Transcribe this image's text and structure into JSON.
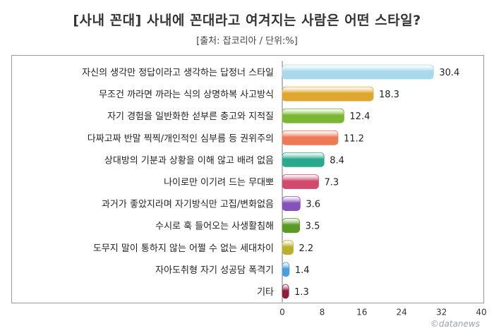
{
  "header": {
    "title": "[사내 꼰대] 사내에 꼰대라고 여겨지는 사람은 어떤 스타일?",
    "subtitle": "[출처: 잡코리아 / 단위:%]"
  },
  "watermark": "©datanews",
  "chart_data": {
    "type": "bar",
    "orientation": "horizontal",
    "title": "[사내 꼰대] 사내에 꼰대라고 여겨지는 사람은 어떤 스타일?",
    "subtitle": "[출처: 잡코리아 / 단위:%]",
    "categories": [
      "자신의 생각만 정답이라고 생각하는 답정너 스타일",
      "무조건 까라면 까라는 식의 상명하복 사고방식",
      "자기 경험을 일반화한 섣부른 충고와 지적질",
      "다짜고짜 반말 찍찍/개인적인 심부름 등 권위주의",
      "상대방의 기분과 상황을 이해 않고 배려 없음",
      "나이로만 이기려 드는 무대뽀",
      "과거가 좋았지라며 자기방식만 고집/변화없음",
      "수시로 훅 들어오는 사생활침해",
      "도무지 말이 통하지 않는 어쩔 수 없는 세대차이",
      "자아도취형 자기 성공담 폭격기",
      "기타"
    ],
    "values": [
      30.4,
      18.3,
      12.4,
      11.2,
      8.4,
      7.3,
      3.6,
      3.5,
      2.2,
      1.4,
      1.3
    ],
    "value_labels": [
      "30.4",
      "18.3",
      "12.4",
      "11.2",
      "8.4",
      "7.3",
      "3.6",
      "3.5",
      "2.2",
      "1.4",
      "1.3"
    ],
    "colors": [
      "#a9d8ec",
      "#e0a730",
      "#7ab833",
      "#ee7a55",
      "#2aa98e",
      "#cf4a6c",
      "#8452b8",
      "#5b9a25",
      "#b9b030",
      "#4a9edc",
      "#8c1e3a"
    ],
    "xlim": [
      0,
      40
    ],
    "xticks": [
      0,
      8,
      16,
      24,
      32,
      40
    ],
    "grid": false,
    "legend": "none"
  }
}
